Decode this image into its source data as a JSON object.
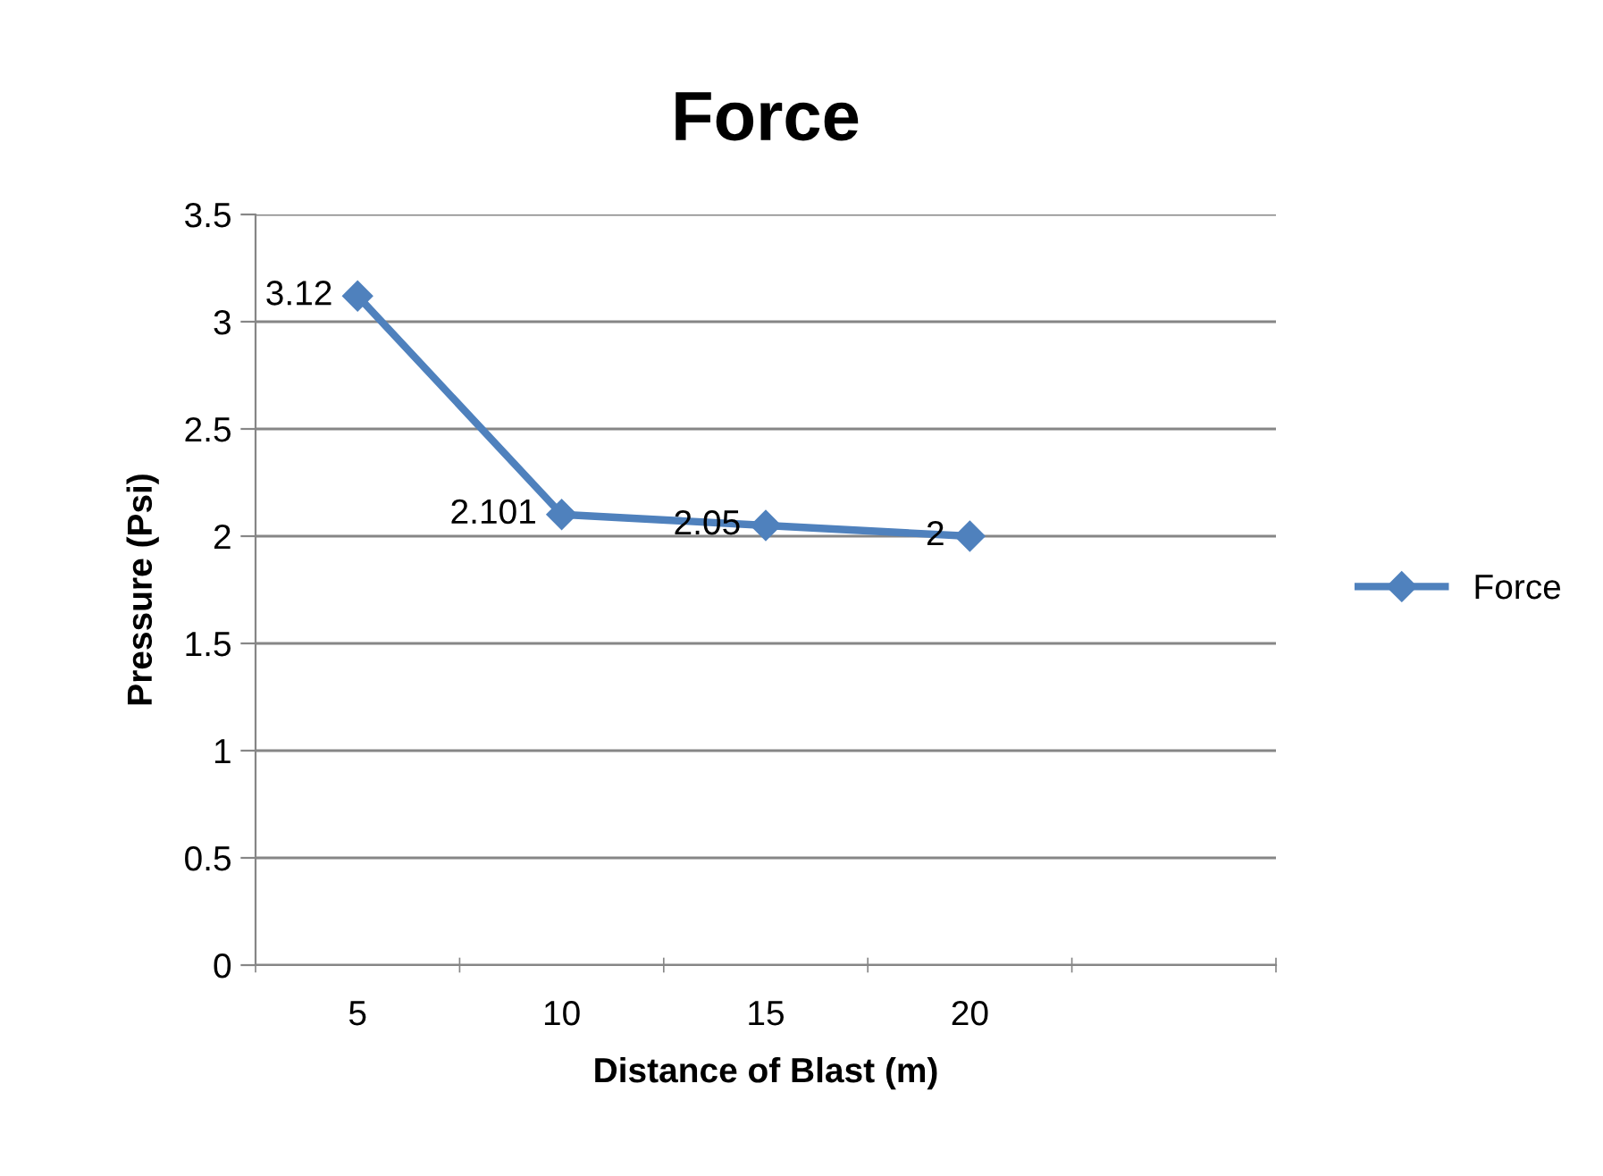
{
  "chart_data": {
    "type": "line",
    "title": "Force",
    "xlabel": "Distance of Blast (m)",
    "ylabel": "Pressure (Psi)",
    "categories": [
      "5",
      "10",
      "15",
      "20",
      null
    ],
    "series": [
      {
        "name": "Force",
        "color": "#4f81bd",
        "values": [
          3.12,
          2.101,
          2.05,
          2,
          null
        ]
      }
    ],
    "ylim": [
      0,
      3.5
    ],
    "yticks": [
      0,
      0.5,
      1,
      1.5,
      2,
      2.5,
      3,
      3.5
    ],
    "grid": "y",
    "legend": "right",
    "marker": "diamond",
    "line_style": "solid",
    "data_labels": true
  }
}
